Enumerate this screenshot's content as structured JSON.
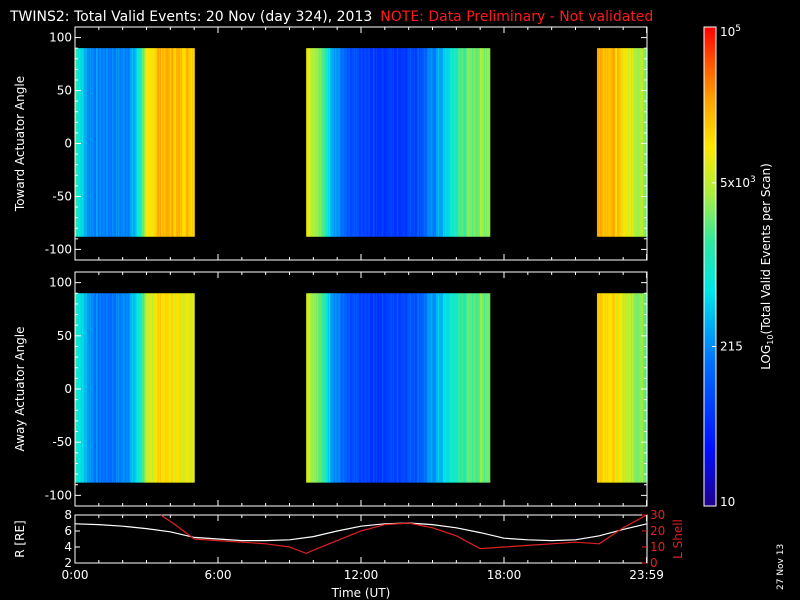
{
  "title": {
    "main": "TWINS2: Total Valid Events: 20 Nov (day 324), 2013",
    "note": "NOTE: Data Preliminary - Not validated"
  },
  "stamp": "27 Nov 13",
  "colors": {
    "background": "#000000",
    "foreground": "#ffffff",
    "note": "#ff1a1a",
    "lshell": "#e02020"
  },
  "chart_data": [
    {
      "type": "heatmap",
      "name": "toward",
      "ylabel": "Toward Actuator Angle",
      "ylim": [
        -110,
        110
      ],
      "yticks": [
        100,
        50,
        0,
        -50,
        -100
      ],
      "y_range_data": [
        -88,
        90
      ],
      "xlim_hours": [
        0,
        24
      ],
      "data_intervals_hours": [
        [
          0.0,
          5.0
        ],
        [
          9.7,
          17.4
        ],
        [
          21.9,
          24.0
        ]
      ],
      "value_scale": "log10",
      "profile_hours": [
        0.0,
        0.5,
        1.0,
        1.5,
        2.0,
        2.5,
        3.0,
        3.5,
        4.0,
        5.0,
        9.7,
        10.2,
        10.8,
        11.5,
        12.5,
        13.5,
        14.5,
        15.5,
        16.2,
        17.4,
        21.9,
        22.5,
        23.0,
        24.0
      ],
      "profile_log10": [
        3.2,
        2.4,
        2.3,
        2.3,
        2.3,
        2.5,
        3.8,
        4.3,
        4.25,
        4.2,
        4.0,
        3.6,
        2.6,
        1.9,
        1.8,
        1.8,
        2.0,
        2.6,
        3.3,
        3.6,
        4.35,
        4.3,
        4.0,
        3.5
      ]
    },
    {
      "type": "heatmap",
      "name": "away",
      "ylabel": "Away Actuator Angle",
      "ylim": [
        -110,
        110
      ],
      "yticks": [
        100,
        50,
        0,
        -50,
        -100
      ],
      "y_range_data": [
        -88,
        90
      ],
      "xlim_hours": [
        0,
        24
      ],
      "data_intervals_hours": [
        [
          0.0,
          5.0
        ],
        [
          9.7,
          17.4
        ],
        [
          21.9,
          24.0
        ]
      ],
      "value_scale": "log10",
      "profile_hours": [
        0.0,
        0.5,
        1.0,
        1.5,
        2.0,
        2.5,
        3.0,
        3.5,
        4.0,
        5.0,
        9.7,
        10.2,
        10.8,
        11.5,
        12.5,
        13.5,
        14.5,
        15.5,
        16.2,
        17.4,
        21.9,
        22.5,
        23.0,
        24.0
      ],
      "profile_log10": [
        3.1,
        2.5,
        2.2,
        2.2,
        2.3,
        2.6,
        3.6,
        4.1,
        4.0,
        3.9,
        3.9,
        3.5,
        2.5,
        1.9,
        1.8,
        1.9,
        2.1,
        2.7,
        3.2,
        3.5,
        4.2,
        4.1,
        3.8,
        3.4
      ]
    },
    {
      "type": "line",
      "name": "orbit",
      "ylabel_left": "R [RE]",
      "ylabel_right": "L Shell",
      "ylim_left": [
        2,
        8
      ],
      "yticks_left": [
        2,
        4,
        6,
        8
      ],
      "ylim_right": [
        0,
        30
      ],
      "yticks_right": [
        0,
        10,
        20,
        30
      ],
      "xlabel": "Time (UT)",
      "xlim_hours": [
        0,
        24
      ],
      "xticks": [
        {
          "hours": 0.0,
          "label": "0:00"
        },
        {
          "hours": 6.0,
          "label": "6:00"
        },
        {
          "hours": 12.0,
          "label": "12:00"
        },
        {
          "hours": 18.0,
          "label": "18:00"
        },
        {
          "hours": 23.983,
          "label": "23:59"
        }
      ],
      "series": [
        {
          "axis": "left",
          "color": "#ffffff",
          "x": [
            0,
            1,
            2,
            3,
            4,
            5,
            6,
            7,
            8,
            9,
            10,
            11,
            12,
            13,
            14,
            15,
            16,
            17,
            18,
            19,
            20,
            21,
            22,
            23,
            24
          ],
          "y": [
            6.9,
            6.8,
            6.6,
            6.3,
            5.9,
            5.2,
            5.0,
            4.8,
            4.8,
            4.9,
            5.3,
            6.0,
            6.6,
            6.9,
            7.0,
            6.8,
            6.4,
            5.8,
            5.1,
            4.9,
            4.8,
            4.9,
            5.4,
            6.2,
            6.9
          ]
        },
        {
          "axis": "right",
          "color": "#e02020",
          "x": [
            3.6,
            4.2,
            5.0,
            6,
            7,
            8,
            9,
            9.7,
            10,
            11,
            12,
            13,
            14,
            15,
            16,
            17.0,
            18,
            19,
            20,
            21,
            22.0,
            23,
            23.99
          ],
          "y": [
            30,
            24,
            15,
            14,
            13,
            12,
            10,
            6,
            8,
            14,
            20,
            24,
            25,
            22,
            17,
            9,
            10,
            11,
            12,
            13,
            12,
            22,
            31
          ]
        }
      ]
    },
    {
      "type": "colorbar",
      "name": "colorbar",
      "label": "LOG",
      "label_sub": "10",
      "label_rest": "(Total Valid Events per Scan)",
      "scale": "log10",
      "range_log10": [
        1,
        5
      ],
      "ticks": [
        {
          "log10": 5.0,
          "base": "10",
          "exp": "5"
        },
        {
          "log10": 3.699,
          "base": "5x10",
          "exp": "3"
        },
        {
          "log10": 2.332,
          "base": "215",
          "exp": ""
        },
        {
          "log10": 1.0,
          "base": "10",
          "exp": ""
        }
      ]
    }
  ]
}
